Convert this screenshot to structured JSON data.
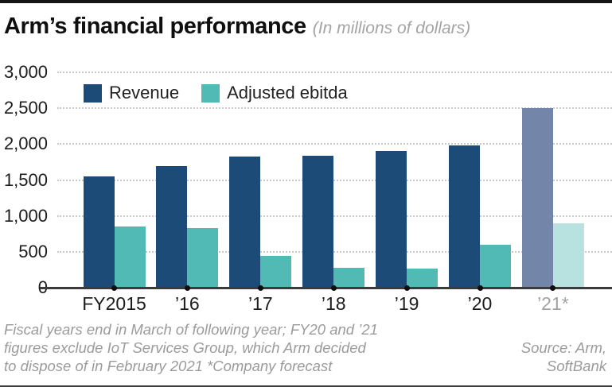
{
  "page": {
    "title": "Arm’s financial performance",
    "subtitle": "(In millions of dollars)",
    "footnote_lines": {
      "0": "Fiscal years end in March of following year; FY20 and ’21",
      "1": "figures exclude IoT Services Group, which Arm decided",
      "2": "to dispose of in February 2021  *Company forecast"
    },
    "source_lines": {
      "0": "Source: Arm,",
      "1": "SoftBank"
    }
  },
  "legend": [
    {
      "label": "Revenue",
      "color": "#1d4b78"
    },
    {
      "label": "Adjusted ebitda",
      "color": "#52bab5"
    }
  ],
  "colors": {
    "revenue": "#1d4b78",
    "revenue_forecast": "#7386aa",
    "ebitda": "#52bab5",
    "ebitda_forecast": "#b7e2df",
    "axis": "#3b3b3b",
    "grid": "#c9c9c9",
    "muted_text": "#9b9b9b"
  },
  "chart_data": {
    "type": "bar",
    "title": "Arm’s financial performance",
    "subtitle": "(In millions of dollars)",
    "categories": [
      "FY2015",
      "’16",
      "’17",
      "’18",
      "’19",
      "’20",
      "’21*"
    ],
    "series": [
      {
        "name": "Revenue",
        "values": [
          1550,
          1690,
          1830,
          1835,
          1900,
          1980,
          2500
        ]
      },
      {
        "name": "Adjusted ebitda",
        "values": [
          850,
          830,
          440,
          280,
          270,
          600,
          900
        ]
      }
    ],
    "forecast_index": 6,
    "forecast_note": "*Company forecast",
    "ylim": [
      0,
      3000
    ],
    "ytick_step": 500,
    "ytick_labels": [
      "0",
      "500",
      "1,000",
      "1,500",
      "2,000",
      "2,500",
      "3,000"
    ],
    "grid": "horizontal dotted",
    "legend_position": "top-left inside plot"
  }
}
